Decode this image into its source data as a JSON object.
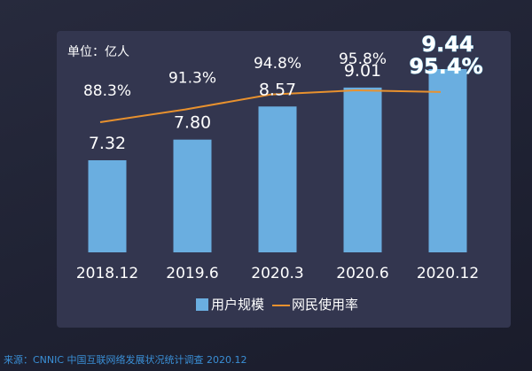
{
  "chart_data": {
    "type": "bar",
    "unit_label": "单位：亿人",
    "categories": [
      "2018.12",
      "2019.6",
      "2020.3",
      "2020.6",
      "2020.12"
    ],
    "series": [
      {
        "name": "用户规模",
        "type": "bar",
        "values": [
          7.32,
          7.8,
          8.57,
          9.01,
          9.44
        ],
        "value_labels": [
          "7.32",
          "7.80",
          "8.57",
          "9.01",
          "9.44"
        ],
        "color": "#6aaee0"
      },
      {
        "name": "网民使用率",
        "type": "line",
        "values": [
          88.3,
          91.3,
          94.8,
          95.8,
          95.4
        ],
        "value_labels": [
          "88.3%",
          "91.3%",
          "94.8%",
          "95.8%",
          "95.4%"
        ],
        "color": "#e8912e"
      }
    ],
    "highlight_index": 4
  },
  "source": "来源：CNNIC 中国互联网络发展状况统计调查 2020.12"
}
